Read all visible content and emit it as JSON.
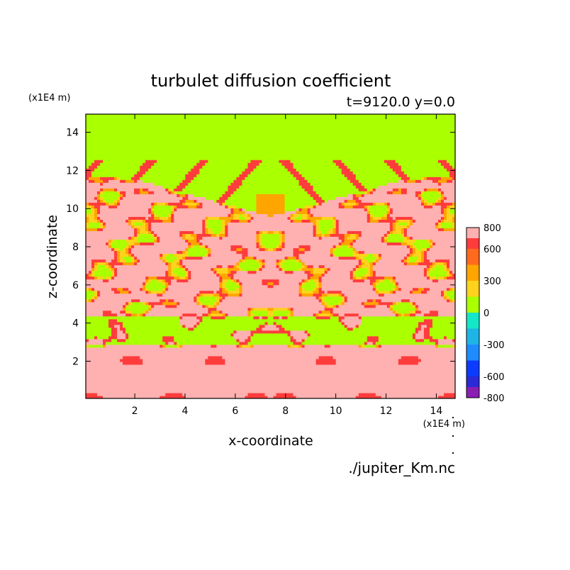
{
  "chart_data": {
    "type": "heatmap",
    "title": "turbulet diffusion coefficient",
    "subtitle": "t=9120.0 y=0.0",
    "xlabel": "x-coordinate",
    "ylabel": "z-coordinate",
    "x_unit": "(x1E4 m)",
    "y_unit": "(x1E4 m)",
    "xlim": [
      0.05,
      14.75
    ],
    "ylim": [
      0.05,
      14.95
    ],
    "x_ticks": [
      "2",
      "4",
      "6",
      "8",
      "10",
      "12",
      "14"
    ],
    "y_ticks": [
      "2",
      "4",
      "6",
      "8",
      "10",
      "12",
      "14"
    ],
    "colorbar": {
      "min": -800,
      "max": 800,
      "tick_labels": [
        "800",
        "600",
        "300",
        "0",
        "-300",
        "-600",
        "-800"
      ],
      "levels": [
        {
          "from": -800,
          "to": -700,
          "color": "#8a1eb3"
        },
        {
          "from": -700,
          "to": -600,
          "color": "#2a2ad6"
        },
        {
          "from": -600,
          "to": -450,
          "color": "#0a3cff"
        },
        {
          "from": -450,
          "to": -300,
          "color": "#1e8cff"
        },
        {
          "from": -300,
          "to": -150,
          "color": "#1eb4e6"
        },
        {
          "from": -150,
          "to": 0,
          "color": "#14e6c8"
        },
        {
          "from": 0,
          "to": 150,
          "color": "#aaff00"
        },
        {
          "from": 150,
          "to": 300,
          "color": "#ffd21e"
        },
        {
          "from": 300,
          "to": 450,
          "color": "#ffa500"
        },
        {
          "from": 450,
          "to": 600,
          "color": "#ff6a1e"
        },
        {
          "from": 600,
          "to": 700,
          "color": "#ff3c3c"
        },
        {
          "from": 700,
          "to": 800,
          "color": "#ffb0b0"
        }
      ]
    },
    "regions": [
      {
        "name": "upper",
        "z_range": [
          12.5,
          14.95
        ],
        "dominant_value": 50
      },
      {
        "name": "lower",
        "z_range": [
          0.05,
          2.8
        ],
        "dominant_value": 780
      },
      {
        "name": "middle",
        "z_range": [
          2.8,
          12.5
        ],
        "dominant_value": "mixed"
      }
    ]
  },
  "footer": {
    "filename": "./jupiter_Km.nc"
  }
}
